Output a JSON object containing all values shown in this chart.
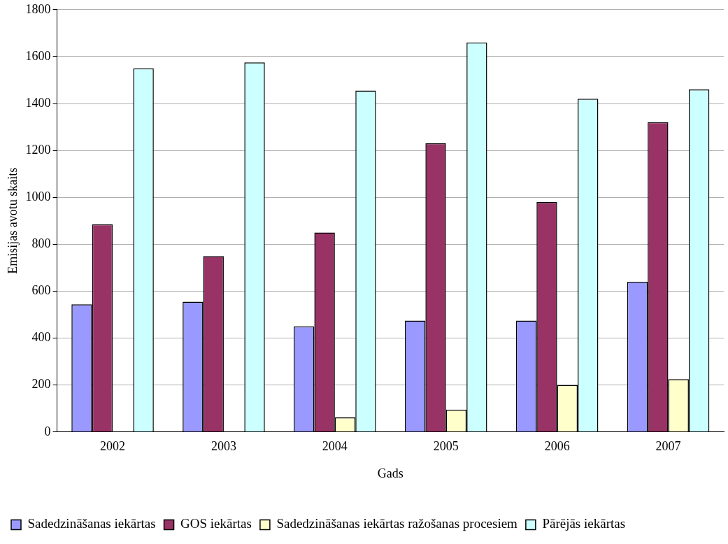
{
  "chart_data": {
    "type": "bar",
    "xlabel": "Gads",
    "ylabel": "Emisijas avotu skaits",
    "categories": [
      "2002",
      "2003",
      "2004",
      "2005",
      "2006",
      "2007"
    ],
    "series": [
      {
        "name": "Sadedzināšanas iekārtas",
        "color": "#9999ff",
        "values": [
          544,
          555,
          450,
          475,
          475,
          640
        ]
      },
      {
        "name": "GOS iekārtas",
        "color": "#993366",
        "values": [
          885,
          750,
          850,
          1230,
          980,
          1320
        ]
      },
      {
        "name": "Sadedzināšanas iekārtas ražošanas procesiem",
        "color": "#ffffcc",
        "values": [
          0,
          0,
          62,
          95,
          200,
          225
        ]
      },
      {
        "name": "Pārējās iekārtas",
        "color": "#ccffff",
        "values": [
          1550,
          1575,
          1455,
          1660,
          1420,
          1460
        ]
      }
    ],
    "ylim": [
      0,
      1800
    ],
    "yticks": [
      0,
      200,
      400,
      600,
      800,
      1000,
      1200,
      1400,
      1600,
      1800
    ],
    "grid": "y",
    "legend": "bottom"
  }
}
